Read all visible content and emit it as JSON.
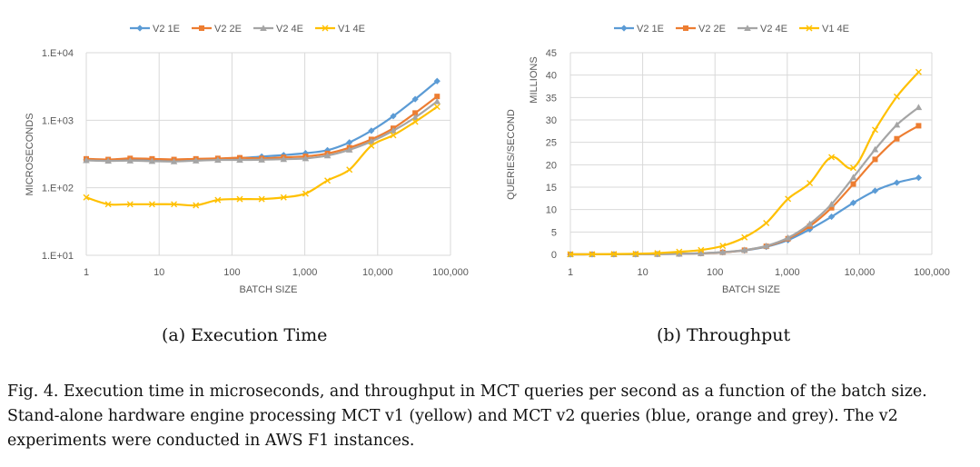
{
  "series_colors": {
    "V2 1E": "#5b9bd5",
    "V2 2E": "#ed7d31",
    "V2 4E": "#a5a5a5",
    "V1 4E": "#ffc000"
  },
  "chart_data": [
    {
      "type": "line",
      "subcaption": "(a) Execution Time",
      "xlabel": "BATCH SIZE",
      "ylabel": "MICROSECONDS",
      "x_scale": "log",
      "y_scale": "log",
      "xlim": [
        1,
        100000
      ],
      "ylim": [
        10,
        10000
      ],
      "x_ticks": [
        "1",
        "10",
        "100",
        "1,000",
        "10,000",
        "100,000"
      ],
      "y_ticks": [
        "1.E+01",
        "1.E+02",
        "1.E+03",
        "1.E+04"
      ],
      "grid": true,
      "legend": "top",
      "x": [
        1,
        2,
        4,
        8,
        16,
        32,
        64,
        128,
        256,
        512,
        1024,
        2048,
        4096,
        8192,
        16384,
        32768,
        65536
      ],
      "series": [
        {
          "name": "V2 1E",
          "marker": "diamond",
          "values": [
            260,
            258,
            262,
            262,
            258,
            263,
            268,
            275,
            290,
            305,
            325,
            360,
            470,
            700,
            1150,
            2050,
            3800
          ]
        },
        {
          "name": "V2 2E",
          "marker": "square",
          "values": [
            268,
            262,
            272,
            268,
            262,
            268,
            272,
            278,
            272,
            282,
            292,
            322,
            392,
            520,
            760,
            1280,
            2250
          ]
        },
        {
          "name": "V2 4E",
          "marker": "triangle",
          "values": [
            255,
            250,
            252,
            248,
            245,
            252,
            258,
            258,
            260,
            265,
            272,
            300,
            365,
            485,
            700,
            1100,
            1900
          ]
        },
        {
          "name": "V1 4E",
          "marker": "x",
          "values": [
            72,
            57,
            57,
            57,
            57,
            55,
            66,
            68,
            68,
            72,
            82,
            128,
            185,
            420,
            600,
            950,
            1580
          ]
        }
      ]
    },
    {
      "type": "line",
      "subcaption": "(b) Throughput",
      "xlabel": "BATCH SIZE",
      "ylabel": "QUERIES/SECOND",
      "y_unit": "MILLIONS",
      "x_scale": "log",
      "xlim": [
        1,
        100000
      ],
      "ylim": [
        0,
        45
      ],
      "x_ticks": [
        "1",
        "10",
        "100",
        "1,000",
        "10,000",
        "100,000"
      ],
      "y_ticks": [
        "0",
        "5",
        "10",
        "15",
        "20",
        "25",
        "30",
        "35",
        "40",
        "45"
      ],
      "grid": true,
      "legend": "top",
      "x": [
        1,
        2,
        4,
        8,
        16,
        32,
        64,
        128,
        256,
        512,
        1024,
        2048,
        4096,
        8192,
        16384,
        32768,
        65536
      ],
      "series": [
        {
          "name": "V2 1E",
          "marker": "diamond",
          "values": [
            0.004,
            0.008,
            0.015,
            0.03,
            0.06,
            0.12,
            0.24,
            0.47,
            0.88,
            1.7,
            3.2,
            5.6,
            8.4,
            11.5,
            14.2,
            16.0,
            17.1
          ]
        },
        {
          "name": "V2 2E",
          "marker": "square",
          "values": [
            0.004,
            0.008,
            0.015,
            0.03,
            0.06,
            0.12,
            0.24,
            0.46,
            0.94,
            1.8,
            3.5,
            6.3,
            10.4,
            15.7,
            21.2,
            25.8,
            28.7
          ]
        },
        {
          "name": "V2 4E",
          "marker": "triangle",
          "values": [
            0.004,
            0.008,
            0.016,
            0.032,
            0.065,
            0.13,
            0.25,
            0.5,
            0.98,
            1.9,
            3.7,
            6.8,
            11.2,
            17.2,
            23.4,
            28.9,
            32.8
          ]
        },
        {
          "name": "V1 4E",
          "marker": "x",
          "values": [
            0.014,
            0.035,
            0.07,
            0.14,
            0.28,
            0.58,
            0.97,
            1.9,
            3.8,
            7.0,
            12.4,
            15.9,
            21.7,
            19.3,
            27.8,
            35.2,
            40.7
          ]
        }
      ]
    }
  ],
  "caption": "Fig. 4.  Execution time in microseconds, and throughput in MCT queries per second as a function of the batch size. Stand-alone hardware engine processing MCT v1 (yellow) and MCT v2 queries (blue, orange and grey). The v2 experiments were conducted in AWS F1 instances."
}
